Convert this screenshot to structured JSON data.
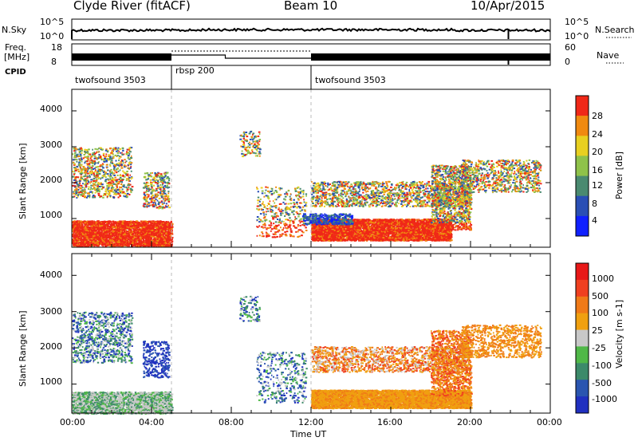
{
  "header": {
    "station": "Clyde River (fitACF)",
    "beam": "Beam 10",
    "date": "10/Apr/2015"
  },
  "nsky_panel": {
    "left_label": "N.Sky",
    "right_label": "N.Search",
    "tick_hi": "10^5",
    "tick_lo": "10^0",
    "right_tick_hi": "10^5",
    "right_tick_lo": "10^0"
  },
  "freq_panel": {
    "label_line1": "Freq.",
    "label_line2": "[MHz]",
    "tick_hi": "18",
    "tick_lo": "8",
    "right_label": "Nave",
    "right_tick_hi": "60",
    "right_tick_lo": "0"
  },
  "cpid": {
    "label": "CPID",
    "segments": [
      {
        "name": "twofsound 3503",
        "start_h": 0,
        "end_h": 5
      },
      {
        "name": "rbsp 200",
        "start_h": 5,
        "end_h": 12
      },
      {
        "name": "twofsound 3503",
        "start_h": 12,
        "end_h": 24
      }
    ]
  },
  "chart_data": [
    {
      "type": "heatmap",
      "name": "Power",
      "ylabel": "Slant Range [km]",
      "colorbar_label": "Power [dB]",
      "colorbar_ticks": [
        "4",
        "8",
        "12",
        "16",
        "20",
        "24",
        "28"
      ],
      "colorbar_colors": [
        "#1020ff",
        "#2a4fb5",
        "#4a8a70",
        "#8fc24a",
        "#e8d020",
        "#f08a10",
        "#f02818"
      ],
      "yticks": [
        "1000",
        "2000",
        "3000",
        "4000"
      ],
      "ylim": [
        200,
        4600
      ],
      "xlim_hours": [
        0,
        24
      ]
    },
    {
      "type": "heatmap",
      "name": "Velocity",
      "ylabel": "Slant Range [km]",
      "xlabel": "Time UT",
      "colorbar_label": "Velocity [m s-1]",
      "colorbar_ticks": [
        "1000",
        "500",
        "100",
        "25",
        "-25",
        "-100",
        "-500",
        "-1000"
      ],
      "colorbar_colors": [
        "#2030c0",
        "#2a55b0",
        "#3c8a6a",
        "#50b848",
        "#c8c8c8",
        "#f0a010",
        "#f07a18",
        "#f04020",
        "#e81818"
      ],
      "yticks": [
        "1000",
        "2000",
        "3000",
        "4000"
      ],
      "ylim": [
        200,
        4600
      ],
      "xticks": [
        "00:00",
        "04:00",
        "08:00",
        "12:00",
        "16:00",
        "20:00",
        "00:00"
      ],
      "xlim_hours": [
        0,
        24
      ]
    }
  ]
}
